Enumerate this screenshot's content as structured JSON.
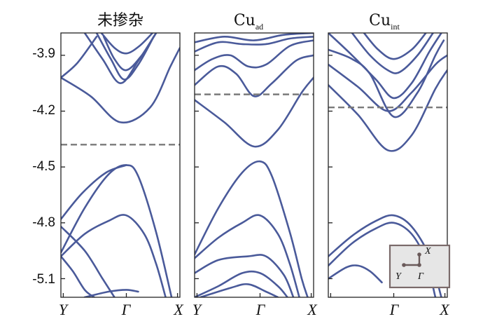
{
  "chart_data": {
    "type": "line",
    "ylabel": "",
    "yticks": [
      "-3.9",
      "-4.2",
      "-4.5",
      "-4.8",
      "-5.1"
    ],
    "ylim": [
      -5.2,
      -3.78
    ],
    "kpoints": [
      "Y",
      "Γ",
      "X"
    ],
    "inset": {
      "labels": [
        "X",
        "Y",
        "Γ"
      ]
    },
    "panels": [
      {
        "title": "未掺杂",
        "title_sub": "",
        "fermi_level": -4.38,
        "kpath_labels": [
          "Y",
          "Γ",
          "X"
        ],
        "bands": [
          [
            [
              0,
              -4.02
            ],
            [
              0.25,
              -4.12
            ],
            [
              0.5,
              -4.26
            ],
            [
              0.75,
              -4.18
            ],
            [
              0.92,
              -3.96
            ],
            [
              1.0,
              -3.86
            ]
          ],
          [
            [
              0,
              -4.02
            ],
            [
              0.14,
              -3.94
            ],
            [
              0.3,
              -3.8
            ]
          ],
          [
            [
              0.2,
              -3.78
            ],
            [
              0.35,
              -3.92
            ],
            [
              0.5,
              -4.05
            ],
            [
              0.65,
              -3.93
            ],
            [
              0.8,
              -3.78
            ]
          ],
          [
            [
              0.3,
              -3.78
            ],
            [
              0.42,
              -3.92
            ],
            [
              0.53,
              -4.03
            ],
            [
              0.65,
              -3.95
            ],
            [
              0.78,
              -3.8
            ]
          ],
          [
            [
              0.36,
              -3.8
            ],
            [
              0.45,
              -3.92
            ],
            [
              0.55,
              -3.98
            ],
            [
              0.68,
              -3.9
            ],
            [
              0.8,
              -3.78
            ]
          ],
          [
            [
              0.34,
              -3.78
            ],
            [
              0.45,
              -3.86
            ],
            [
              0.55,
              -3.89
            ],
            [
              0.66,
              -3.85
            ],
            [
              0.77,
              -3.78
            ]
          ],
          [
            [
              0.0,
              -4.96
            ],
            [
              0.2,
              -4.72
            ],
            [
              0.4,
              -4.54
            ],
            [
              0.55,
              -4.49
            ],
            [
              0.65,
              -4.55
            ],
            [
              0.8,
              -4.85
            ],
            [
              0.93,
              -5.2
            ]
          ],
          [
            [
              0.0,
              -4.78
            ],
            [
              0.18,
              -4.64
            ],
            [
              0.38,
              -4.53
            ],
            [
              0.55,
              -4.49
            ]
          ],
          [
            [
              0.0,
              -4.82
            ],
            [
              0.2,
              -4.95
            ],
            [
              0.35,
              -5.1
            ],
            [
              0.45,
              -5.2
            ]
          ],
          [
            [
              0.0,
              -4.98
            ],
            [
              0.2,
              -4.86
            ],
            [
              0.4,
              -4.79
            ],
            [
              0.55,
              -4.76
            ],
            [
              0.7,
              -4.86
            ],
            [
              0.8,
              -5.02
            ],
            [
              0.88,
              -5.2
            ]
          ],
          [
            [
              0.0,
              -4.98
            ],
            [
              0.1,
              -5.06
            ],
            [
              0.2,
              -5.16
            ],
            [
              0.28,
              -5.2
            ]
          ],
          [
            [
              0.2,
              -5.2
            ],
            [
              0.4,
              -5.17
            ],
            [
              0.55,
              -5.16
            ],
            [
              0.65,
              -5.17
            ]
          ]
        ]
      },
      {
        "title": "Cu",
        "title_sub": "ad",
        "fermi_level": -4.11,
        "kpath_labels": [
          "Y",
          "Γ",
          "X"
        ],
        "bands": [
          [
            [
              0,
              -4.14
            ],
            [
              0.25,
              -4.26
            ],
            [
              0.5,
              -4.39
            ],
            [
              0.7,
              -4.3
            ],
            [
              0.9,
              -4.1
            ],
            [
              1.0,
              -4.02
            ]
          ],
          [
            [
              0,
              -4.06
            ],
            [
              0.2,
              -3.96
            ],
            [
              0.35,
              -4.0
            ],
            [
              0.5,
              -4.12
            ],
            [
              0.65,
              -4.05
            ],
            [
              0.85,
              -3.93
            ],
            [
              1.0,
              -3.9
            ]
          ],
          [
            [
              0,
              -3.98
            ],
            [
              0.15,
              -3.92
            ],
            [
              0.3,
              -3.9
            ],
            [
              0.45,
              -3.96
            ],
            [
              0.6,
              -3.95
            ],
            [
              0.8,
              -3.85
            ],
            [
              1.0,
              -3.82
            ]
          ],
          [
            [
              0,
              -3.88
            ],
            [
              0.2,
              -3.83
            ],
            [
              0.4,
              -3.84
            ],
            [
              0.6,
              -3.84
            ],
            [
              0.8,
              -3.81
            ],
            [
              1.0,
              -3.8
            ]
          ],
          [
            [
              0,
              -3.83
            ],
            [
              0.25,
              -3.8
            ],
            [
              0.5,
              -3.82
            ],
            [
              0.75,
              -3.79
            ],
            [
              1.0,
              -3.78
            ]
          ],
          [
            [
              0.0,
              -4.97
            ],
            [
              0.2,
              -4.72
            ],
            [
              0.4,
              -4.53
            ],
            [
              0.55,
              -4.47
            ],
            [
              0.65,
              -4.55
            ],
            [
              0.8,
              -4.85
            ],
            [
              0.9,
              -5.1
            ],
            [
              0.95,
              -5.2
            ]
          ],
          [
            [
              0.0,
              -4.99
            ],
            [
              0.2,
              -4.88
            ],
            [
              0.4,
              -4.8
            ],
            [
              0.55,
              -4.76
            ],
            [
              0.7,
              -4.86
            ],
            [
              0.8,
              -5.02
            ],
            [
              0.88,
              -5.2
            ]
          ],
          [
            [
              0.0,
              -5.07
            ],
            [
              0.2,
              -5.0
            ],
            [
              0.45,
              -4.98
            ],
            [
              0.6,
              -4.98
            ],
            [
              0.75,
              -5.08
            ],
            [
              0.83,
              -5.2
            ]
          ],
          [
            [
              0.0,
              -5.2
            ],
            [
              0.2,
              -5.14
            ],
            [
              0.4,
              -5.07
            ],
            [
              0.55,
              -5.07
            ],
            [
              0.7,
              -5.14
            ],
            [
              0.78,
              -5.2
            ]
          ],
          [
            [
              0.05,
              -5.2
            ],
            [
              0.3,
              -5.15
            ],
            [
              0.45,
              -5.13
            ],
            [
              0.6,
              -5.17
            ],
            [
              0.7,
              -5.2
            ]
          ]
        ]
      },
      {
        "title": "Cu",
        "title_sub": "int",
        "fermi_level": -4.18,
        "kpath_labels": [
          "",
          "Γ",
          "X"
        ],
        "bands": [
          [
            [
              0,
              -4.06
            ],
            [
              0.25,
              -4.22
            ],
            [
              0.5,
              -4.41
            ],
            [
              0.7,
              -4.33
            ],
            [
              0.9,
              -4.08
            ],
            [
              1.0,
              -3.98
            ]
          ],
          [
            [
              0,
              -3.95
            ],
            [
              0.25,
              -4.07
            ],
            [
              0.5,
              -4.2
            ],
            [
              0.7,
              -4.1
            ],
            [
              0.9,
              -3.95
            ],
            [
              1.0,
              -3.9
            ]
          ],
          [
            [
              0,
              -3.87
            ],
            [
              0.2,
              -3.92
            ],
            [
              0.35,
              -4.0
            ],
            [
              0.55,
              -4.23
            ],
            [
              0.75,
              -4.1
            ],
            [
              0.9,
              -3.9
            ],
            [
              0.97,
              -3.82
            ]
          ],
          [
            [
              0.0,
              -3.78
            ],
            [
              0.2,
              -3.9
            ],
            [
              0.4,
              -4.03
            ],
            [
              0.55,
              -4.13
            ],
            [
              0.7,
              -4.05
            ],
            [
              0.85,
              -3.88
            ],
            [
              0.95,
              -3.78
            ]
          ],
          [
            [
              0.2,
              -3.78
            ],
            [
              0.35,
              -3.9
            ],
            [
              0.5,
              -3.98
            ],
            [
              0.6,
              -3.99
            ],
            [
              0.75,
              -3.9
            ],
            [
              0.88,
              -3.78
            ]
          ],
          [
            [
              0.3,
              -3.78
            ],
            [
              0.42,
              -3.87
            ],
            [
              0.55,
              -3.92
            ],
            [
              0.7,
              -3.87
            ],
            [
              0.82,
              -3.78
            ]
          ],
          [
            [
              0.0,
              -4.98
            ],
            [
              0.2,
              -4.87
            ],
            [
              0.4,
              -4.79
            ],
            [
              0.55,
              -4.76
            ],
            [
              0.7,
              -4.82
            ],
            [
              0.85,
              -4.98
            ],
            [
              0.95,
              -5.2
            ]
          ],
          [
            [
              0.0,
              -5.03
            ],
            [
              0.2,
              -4.91
            ],
            [
              0.4,
              -4.83
            ],
            [
              0.55,
              -4.8
            ],
            [
              0.7,
              -4.86
            ],
            [
              0.82,
              -5.0
            ],
            [
              0.9,
              -5.2
            ]
          ],
          [
            [
              0.0,
              -5.1
            ],
            [
              0.15,
              -5.04
            ],
            [
              0.25,
              -5.03
            ],
            [
              0.35,
              -5.06
            ],
            [
              0.45,
              -5.12
            ]
          ]
        ]
      }
    ]
  }
}
